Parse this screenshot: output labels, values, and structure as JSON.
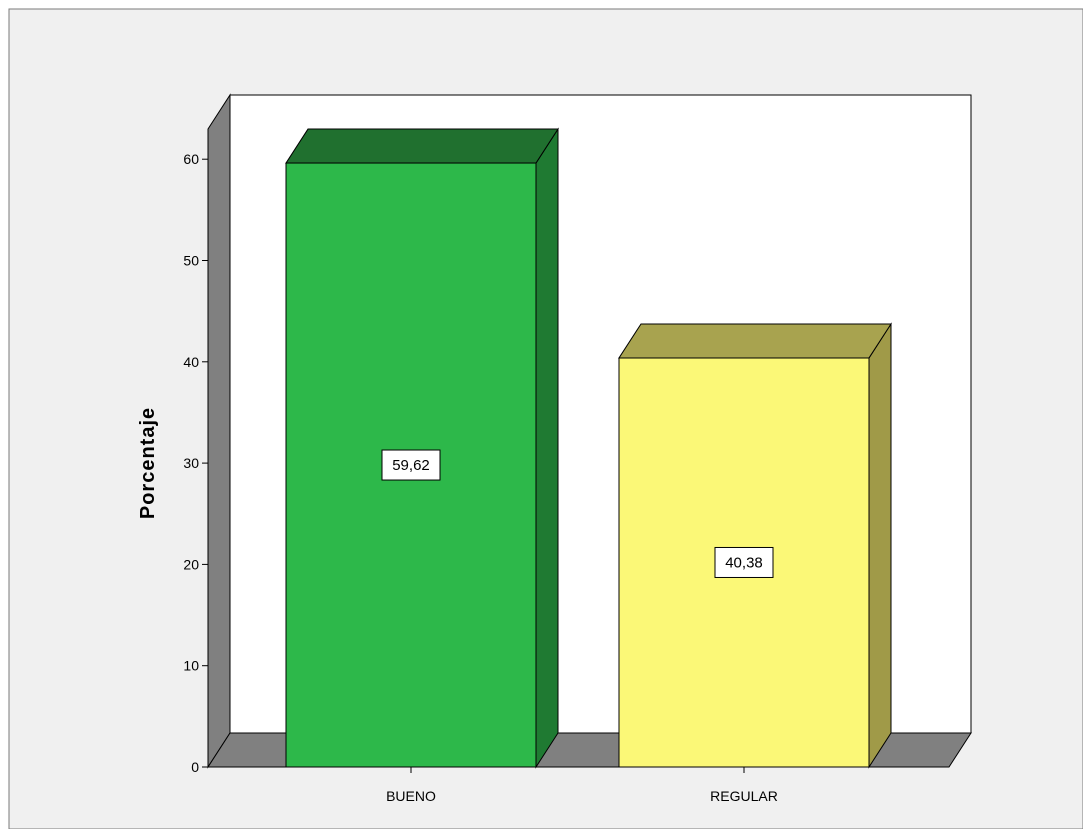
{
  "chart_data": {
    "type": "bar",
    "style": "3d",
    "title": "",
    "xlabel": "",
    "ylabel": "Porcentaje",
    "categories": [
      "BUENO",
      "REGULAR"
    ],
    "values": [
      59.62,
      40.38
    ],
    "data_labels": [
      "59,62",
      "40,38"
    ],
    "ylim": [
      0,
      60
    ],
    "yticks": [
      "0",
      "10",
      "20",
      "30",
      "40",
      "50",
      "60"
    ],
    "colors": {
      "bars": [
        "#2db84a",
        "#fbf877"
      ],
      "bar_sides": [
        "#1f7a32",
        "#a09a48"
      ],
      "bar_tops": [
        "#20702f",
        "#a8a34f"
      ],
      "wall": "#808080",
      "plot_background": "#ffffff",
      "canvas_background": "#f0f0f0"
    },
    "grid": false,
    "legend": "none"
  }
}
